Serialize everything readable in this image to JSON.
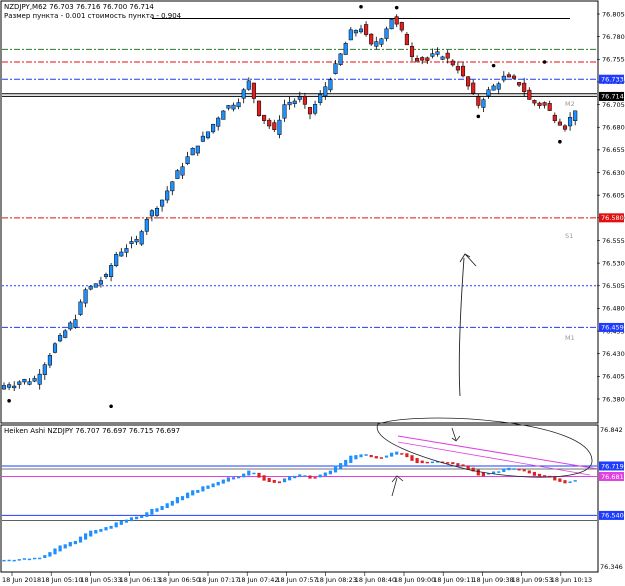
{
  "main": {
    "header_line1": "NZDJPY,M62  76.703 76.716 76.700 76.714",
    "header_line2": "Размер пункта - 0.001 стоимость пункта - 0.904",
    "price_ticks": [
      "76.805",
      "76.780",
      "76.755",
      "76.730",
      "76.705",
      "76.680",
      "76.655",
      "76.630",
      "76.605",
      "76.580",
      "76.555",
      "76.530",
      "76.505",
      "76.480",
      "76.455",
      "76.430",
      "76.405",
      "76.380"
    ],
    "level_labels": {
      "m2": "M2",
      "s1": "S1",
      "m1": "M1"
    },
    "price_tags": [
      {
        "value": "76.733",
        "color": "#1e3cff"
      },
      {
        "value": "76.714",
        "color": "#000000"
      },
      {
        "value": "76.580",
        "color": "#e01010"
      },
      {
        "value": "76.459",
        "color": "#1e3cff"
      }
    ]
  },
  "sub": {
    "header": "Heiken Ashi NZDJPY 76.707 76.697 76.715 76.697",
    "price_ticks": [
      "76.842",
      "76.346"
    ],
    "price_tags": [
      {
        "value": "76.719",
        "color": "#1e3cff"
      },
      {
        "value": "76.681",
        "color": "#e040e0"
      },
      {
        "value": "76.540",
        "color": "#1e3cff"
      }
    ]
  },
  "time_labels": [
    "18 Jun 2018",
    "18 Jun 05:10",
    "18 Jun 05:33",
    "18 Jun 06:13",
    "18 Jun 06:50",
    "18 Jun 07:17",
    "18 Jun 07:42",
    "18 Jun 07:57",
    "18 Jun 08:23",
    "18 Jun 08:40",
    "18 Jun 09:00",
    "18 Jun 09:11",
    "18 Jun 09:38",
    "18 Jun 09:53",
    "18 Jun 10:13"
  ],
  "colors": {
    "bull": "#1e8fff",
    "bear": "#e02020",
    "blue_level": "#1e3cff",
    "red_level": "#e01010",
    "green_level": "#2a7a2a",
    "magenta": "#e040e0"
  },
  "chart_data": [
    {
      "type": "candlestick",
      "title": "NZDJPY,M62",
      "ylim": [
        76.37,
        76.82
      ],
      "close_path": [
        [
          0,
          76.395
        ],
        [
          6,
          76.4
        ],
        [
          10,
          76.44
        ],
        [
          14,
          76.47
        ],
        [
          16,
          76.5
        ],
        [
          20,
          76.515
        ],
        [
          22,
          76.54
        ],
        [
          26,
          76.555
        ],
        [
          28,
          76.58
        ],
        [
          31,
          76.6
        ],
        [
          34,
          76.63
        ],
        [
          37,
          76.655
        ],
        [
          40,
          76.675
        ],
        [
          43,
          76.7
        ],
        [
          46,
          76.71
        ],
        [
          48,
          76.73
        ],
        [
          50,
          76.695
        ],
        [
          53,
          76.675
        ],
        [
          55,
          76.705
        ],
        [
          58,
          76.71
        ],
        [
          60,
          76.695
        ],
        [
          62,
          76.715
        ],
        [
          64,
          76.735
        ],
        [
          66,
          76.76
        ],
        [
          68,
          76.785
        ],
        [
          70,
          76.79
        ],
        [
          72,
          76.77
        ],
        [
          74,
          76.78
        ],
        [
          76,
          76.8
        ],
        [
          78,
          76.785
        ],
        [
          80,
          76.76
        ],
        [
          83,
          76.755
        ],
        [
          86,
          76.76
        ],
        [
          89,
          76.745
        ],
        [
          91,
          76.725
        ],
        [
          93,
          76.705
        ],
        [
          95,
          76.72
        ],
        [
          98,
          76.735
        ],
        [
          101,
          76.73
        ],
        [
          103,
          76.71
        ],
        [
          106,
          76.705
        ],
        [
          108,
          76.69
        ],
        [
          110,
          76.68
        ],
        [
          112,
          76.7
        ]
      ],
      "horizontal_levels": [
        {
          "value": 76.8,
          "style": "solid",
          "color": "#000000"
        },
        {
          "value": 76.766,
          "style": "dash-dot",
          "color": "#2a7a2a"
        },
        {
          "value": 76.752,
          "style": "dash-dot",
          "color": "#e01010"
        },
        {
          "value": 76.733,
          "style": "dash-dot",
          "color": "#1e3cff",
          "label": "M2"
        },
        {
          "value": 76.717,
          "style": "solid",
          "color": "#000000"
        },
        {
          "value": 76.714,
          "style": "solid",
          "color": "#000000"
        },
        {
          "value": 76.58,
          "style": "dash-dot",
          "color": "#e01010",
          "label": "S1"
        },
        {
          "value": 76.505,
          "style": "dotted",
          "color": "#1e3cff"
        },
        {
          "value": 76.459,
          "style": "dash-dot",
          "color": "#1e3cff",
          "label": "M1"
        }
      ]
    },
    {
      "type": "heikin-ashi",
      "title": "Heiken Ashi NZDJPY",
      "ylim": [
        76.346,
        76.842
      ],
      "horizontal_levels": [
        {
          "value": 76.719,
          "style": "solid",
          "color": "#1e3cff"
        },
        {
          "value": 76.681,
          "style": "solid",
          "color": "#e040e0"
        },
        {
          "value": 76.54,
          "style": "solid",
          "color": "#1e3cff"
        }
      ]
    }
  ]
}
